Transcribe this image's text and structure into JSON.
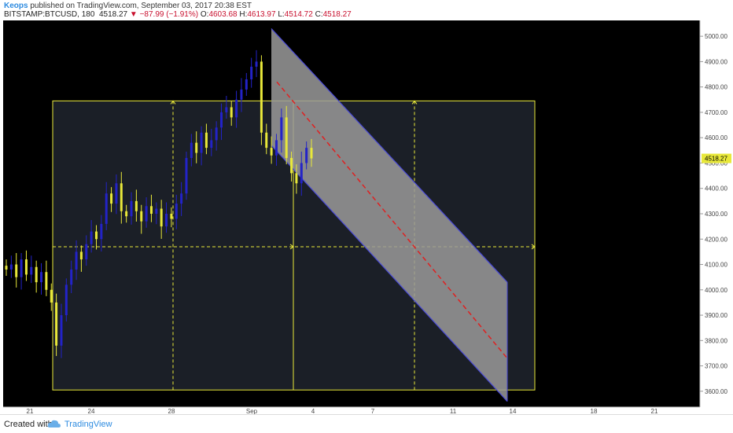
{
  "header": {
    "user": "Keops",
    "published_text": "published on TradingView.com, September 03, 2017 20:38 EST",
    "symbol": "BITSTAMP:BTCUSD, 180",
    "last": "4518.27",
    "change_arrow": "▼",
    "change": "−87.99 (−1.91%)",
    "open_label": "O:",
    "open": "4603.68",
    "high_label": "H:",
    "high": "4613.97",
    "low_label": "L:",
    "low": "4514.72",
    "close_label": "C:",
    "close": "4518.27"
  },
  "footer": {
    "created_with": "Created with",
    "brand": "TradingView"
  },
  "chart_data": {
    "type": "candlestick",
    "symbol": "BITSTAMP:BTCUSD",
    "interval": "180",
    "ylim": [
      3550,
      5050
    ],
    "y_ticks": [
      3600,
      3700,
      3800,
      3900,
      4000,
      4100,
      4200,
      4300,
      4400,
      4500,
      4600,
      4700,
      4800,
      4900,
      5000
    ],
    "y_tick_labels": [
      "3600.00",
      "3700.00",
      "3800.00",
      "3900.00",
      "4000.00",
      "4100.00",
      "4200.00",
      "4300.00",
      "4400.00",
      "4500.00",
      "4600.00",
      "4700.00",
      "4800.00",
      "4900.00",
      "5000.00"
    ],
    "x_tick_labels": [
      "21",
      "24",
      "28",
      "Sep",
      "4",
      "7",
      "11",
      "14",
      "18",
      "21"
    ],
    "last_price_label": "4518.27",
    "colors": {
      "background": "#000000",
      "up": "#2323c8",
      "down": "#e8e83a",
      "box": "#e8e83a",
      "channel_edge": "#4a4ad8",
      "channel_fill": "#9a9a9a",
      "median_line": "#e02020",
      "axis_text": "#cfcfcf",
      "price_tag": "#e8e83a"
    },
    "price_path": [
      4080,
      4100,
      4050,
      4120,
      4060,
      4090,
      4030,
      4070,
      4000,
      3950,
      3780,
      3900,
      4020,
      4080,
      4150,
      4120,
      4180,
      4230,
      4200,
      4260,
      4380,
      4340,
      4420,
      4310,
      4290,
      4350,
      4310,
      4270,
      4330,
      4300,
      4320,
      4250,
      4300,
      4280,
      4340,
      4380,
      4520,
      4580,
      4540,
      4620,
      4560,
      4590,
      4640,
      4700,
      4720,
      4680,
      4750,
      4790,
      4830,
      4880,
      4900,
      4620,
      4560,
      4530,
      4590,
      4680,
      4520,
      4460,
      4420,
      4500,
      4560,
      4518.27
    ],
    "box": {
      "price_top": 4745,
      "price_bottom": 3605,
      "price_mid": 4170
    },
    "channel": {
      "upper_start": 5030,
      "upper_end": 4030,
      "lower_start": 4570,
      "lower_end": 3560,
      "median_start": 4820,
      "median_end": 3730
    }
  }
}
